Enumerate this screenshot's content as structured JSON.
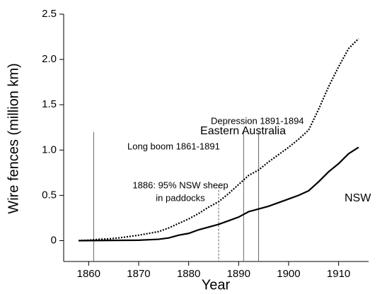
{
  "chart_data": {
    "type": "line",
    "x_label": "Year",
    "y_label": "Wire fences (million km)",
    "xlim": [
      1855,
      1916
    ],
    "ylim": [
      -0.23,
      2.5
    ],
    "xticks": [
      1860,
      1870,
      1880,
      1890,
      1900,
      1910
    ],
    "yticks": [
      0,
      0.5,
      {
        "value": 1,
        "label": "1.0"
      },
      1.5,
      {
        "value": 2,
        "label": "2.0"
      },
      2.5
    ],
    "series": [
      {
        "name": "Eastern Australia",
        "color": "#000",
        "style": "dotted",
        "x": [
          1858,
          1860,
          1862,
          1864,
          1866,
          1868,
          1870,
          1872,
          1874,
          1876,
          1878,
          1880,
          1882,
          1884,
          1886,
          1888,
          1890,
          1892,
          1894,
          1896,
          1898,
          1900,
          1902,
          1904,
          1906,
          1908,
          1910,
          1912,
          1914
        ],
        "values": [
          0,
          0.005,
          0.015,
          0.02,
          0.03,
          0.045,
          0.06,
          0.08,
          0.1,
          0.14,
          0.19,
          0.24,
          0.3,
          0.37,
          0.43,
          0.52,
          0.62,
          0.72,
          0.78,
          0.87,
          0.95,
          1.03,
          1.12,
          1.22,
          1.45,
          1.7,
          1.92,
          2.12,
          2.23
        ]
      },
      {
        "name": "NSW",
        "color": "#000",
        "style": "solid",
        "x": [
          1858,
          1865,
          1870,
          1874,
          1876,
          1878,
          1880,
          1882,
          1884,
          1886,
          1888,
          1890,
          1892,
          1894,
          1896,
          1898,
          1900,
          1902,
          1904,
          1906,
          1908,
          1910,
          1912,
          1914
        ],
        "values": [
          0,
          0.003,
          0.005,
          0.015,
          0.03,
          0.06,
          0.08,
          0.12,
          0.15,
          0.18,
          0.22,
          0.26,
          0.32,
          0.35,
          0.38,
          0.42,
          0.46,
          0.5,
          0.55,
          0.65,
          0.76,
          0.85,
          0.96,
          1.03
        ]
      }
    ],
    "markers": [
      {
        "x": 1861,
        "top": 1.2,
        "style": "solid"
      },
      {
        "x": 1891,
        "top": 1.2,
        "style": "solid"
      },
      {
        "x": 1894,
        "top": 1.2,
        "style": "solid"
      },
      {
        "x": 1886,
        "top": 0.6,
        "style": "dashed"
      }
    ],
    "annotations": [
      "Long boom 1861-1891",
      "Depression 1891-1894",
      "1886: 95% NSW sheep",
      "in paddocks"
    ]
  }
}
